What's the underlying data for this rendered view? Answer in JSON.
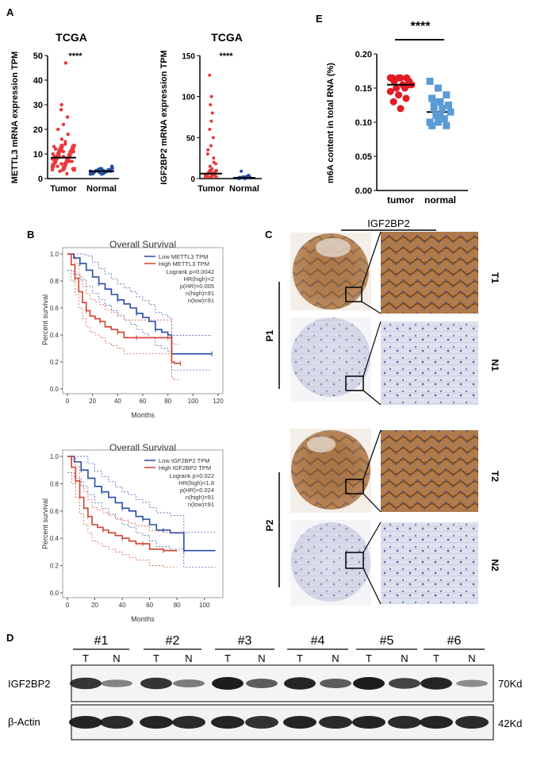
{
  "panels": {
    "A": "A",
    "B": "B",
    "C": "C",
    "D": "D",
    "E": "E"
  },
  "colors": {
    "tumor": "#e8383d",
    "normal": "#1f4e9c",
    "e_tumor": "#e31b23",
    "e_normal": "#5b9bd5",
    "km_low": "#2b4aa8",
    "km_high": "#d2402f"
  },
  "chart_data": [
    {
      "id": "A1",
      "type": "scatter",
      "title": "TCGA",
      "significance": "****",
      "ylabel": "METTL3 mRNA expression TPM",
      "categories": [
        "Tumor",
        "Normal"
      ],
      "ylim": [
        0,
        50
      ],
      "yticks": [
        0,
        10,
        20,
        30,
        40,
        50
      ],
      "series": [
        {
          "name": "Tumor",
          "median": 8.5,
          "values": [
            8,
            6,
            10,
            12,
            9,
            7,
            5,
            14,
            11,
            9,
            8,
            13,
            16,
            18,
            20,
            22,
            25,
            28,
            6,
            4,
            3,
            2,
            10,
            12,
            7,
            9,
            11,
            47,
            30,
            15
          ]
        },
        {
          "name": "Normal",
          "median": 3,
          "values": [
            3,
            2.5,
            3.5,
            2,
            4,
            3,
            2.8,
            3.2,
            5
          ]
        }
      ]
    },
    {
      "id": "A2",
      "type": "scatter",
      "title": "TCGA",
      "significance": "****",
      "ylabel": "IGF2BP2 mRNA expression TPM",
      "categories": [
        "Tumor",
        "Normal"
      ],
      "ylim": [
        0,
        150
      ],
      "yticks": [
        0,
        50,
        100,
        150
      ],
      "series": [
        {
          "name": "Tumor",
          "median": 6,
          "values": [
            5,
            10,
            20,
            30,
            40,
            50,
            60,
            70,
            80,
            90,
            100,
            126,
            15,
            25,
            35,
            8,
            3,
            2,
            12,
            18
          ]
        },
        {
          "name": "Normal",
          "median": 1,
          "values": [
            1,
            2,
            3,
            1.5,
            0.5,
            4,
            9,
            2
          ]
        }
      ]
    },
    {
      "id": "E",
      "type": "scatter",
      "title": "",
      "significance": "****",
      "ylabel": "m6A content in total RNA (%)",
      "categories": [
        "tumor",
        "normal"
      ],
      "ylim": [
        0,
        0.2
      ],
      "yticks": [
        "0.00",
        "0.05",
        "0.10",
        "0.15",
        "0.20"
      ],
      "series": [
        {
          "name": "tumor",
          "median": 0.155,
          "values": [
            0.165,
            0.165,
            0.165,
            0.165,
            0.165,
            0.16,
            0.16,
            0.155,
            0.155,
            0.15,
            0.15,
            0.145,
            0.14,
            0.135,
            0.13,
            0.12,
            0.155,
            0.16
          ]
        },
        {
          "name": "normal",
          "median": 0.115,
          "values": [
            0.16,
            0.15,
            0.14,
            0.135,
            0.13,
            0.125,
            0.12,
            0.12,
            0.115,
            0.11,
            0.105,
            0.1,
            0.1,
            0.095,
            0.095,
            0.11,
            0.125,
            0.13
          ]
        }
      ]
    },
    {
      "id": "B1",
      "type": "line",
      "title": "Overall Survival",
      "xlabel": "Months",
      "ylabel": "Percent survival",
      "xlim": [
        0,
        120
      ],
      "xticks": [
        0,
        20,
        40,
        60,
        80,
        100,
        120
      ],
      "ylim": [
        0,
        1
      ],
      "yticks": [
        "0.0",
        "0.2",
        "0.4",
        "0.6",
        "0.8",
        "1.0"
      ],
      "legend": [
        "Low METTL3 TPM",
        "High METTL3 TPM"
      ],
      "stats": [
        "Logrank p=0.0042",
        "HR(high)=2",
        "p(HR)=0.005",
        "n(high)=91",
        "n(low)=91"
      ],
      "series": [
        {
          "name": "Low METTL3 TPM",
          "x": [
            0,
            5,
            10,
            15,
            20,
            25,
            30,
            35,
            40,
            45,
            50,
            55,
            60,
            65,
            70,
            75,
            80,
            83,
            85,
            100,
            115
          ],
          "y": [
            1,
            0.97,
            0.93,
            0.88,
            0.83,
            0.78,
            0.74,
            0.7,
            0.66,
            0.63,
            0.6,
            0.56,
            0.53,
            0.5,
            0.44,
            0.42,
            0.4,
            0.26,
            0.26,
            0.26,
            0.26
          ]
        },
        {
          "name": "High METTL3 TPM",
          "x": [
            0,
            3,
            6,
            9,
            12,
            15,
            18,
            22,
            26,
            30,
            35,
            40,
            45,
            50,
            55,
            60,
            70,
            80,
            83,
            85,
            90
          ],
          "y": [
            1,
            0.92,
            0.82,
            0.72,
            0.64,
            0.58,
            0.54,
            0.52,
            0.5,
            0.46,
            0.44,
            0.42,
            0.38,
            0.38,
            0.38,
            0.38,
            0.38,
            0.38,
            0.2,
            0.19,
            0.19
          ]
        }
      ]
    },
    {
      "id": "B2",
      "type": "line",
      "title": "Overall Survival",
      "xlabel": "Months",
      "ylabel": "Percent survival",
      "xlim": [
        0,
        110
      ],
      "xticks": [
        0,
        20,
        40,
        60,
        80,
        100
      ],
      "ylim": [
        0,
        1
      ],
      "yticks": [
        "0.0",
        "0.2",
        "0.4",
        "0.6",
        "0.8",
        "1.0"
      ],
      "legend": [
        "Low IGF2BP2 TPM",
        "High IGF2BP2 TPM"
      ],
      "stats": [
        "Logrank p=0.022",
        "HR(high)=1.8",
        "p(HR)=0.024",
        "n(high)=91",
        "n(low)=91"
      ],
      "series": [
        {
          "name": "Low IGF2BP2 TPM",
          "x": [
            0,
            5,
            10,
            15,
            20,
            25,
            30,
            35,
            40,
            45,
            50,
            55,
            60,
            65,
            70,
            75,
            80,
            85,
            100,
            108
          ],
          "y": [
            1,
            0.96,
            0.9,
            0.84,
            0.78,
            0.74,
            0.7,
            0.66,
            0.62,
            0.6,
            0.56,
            0.54,
            0.5,
            0.46,
            0.46,
            0.44,
            0.44,
            0.31,
            0.31,
            0.31
          ]
        },
        {
          "name": "High IGF2BP2 TPM",
          "x": [
            0,
            3,
            6,
            9,
            12,
            15,
            18,
            22,
            26,
            30,
            35,
            40,
            45,
            50,
            55,
            60,
            65,
            70,
            80
          ],
          "y": [
            1,
            0.92,
            0.82,
            0.7,
            0.62,
            0.56,
            0.5,
            0.48,
            0.46,
            0.44,
            0.42,
            0.4,
            0.38,
            0.36,
            0.36,
            0.32,
            0.32,
            0.31,
            0.31
          ]
        }
      ]
    }
  ],
  "ihc": {
    "title": "IGF2BP2",
    "patients": [
      "P1",
      "P2"
    ],
    "rows": [
      "T1",
      "N1",
      "T2",
      "N2"
    ]
  },
  "western": {
    "samples": [
      "#1",
      "#2",
      "#3",
      "#4",
      "#5",
      "#6"
    ],
    "lanes": [
      "T",
      "N",
      "T",
      "N",
      "T",
      "N",
      "T",
      "N",
      "T",
      "N",
      "T",
      "N"
    ],
    "proteins": [
      {
        "name": "IGF2BP2",
        "size": "70Kd"
      },
      {
        "name": "β-Actin",
        "size": "42Kd"
      }
    ],
    "igf2bp2_intensity": [
      0.85,
      0.35,
      0.85,
      0.4,
      1.0,
      0.6,
      0.95,
      0.6,
      1.0,
      0.75,
      0.95,
      0.3
    ],
    "actin_intensity": [
      0.95,
      0.9,
      0.95,
      0.9,
      0.95,
      0.85,
      0.95,
      0.9,
      0.95,
      0.9,
      0.95,
      0.9
    ]
  }
}
